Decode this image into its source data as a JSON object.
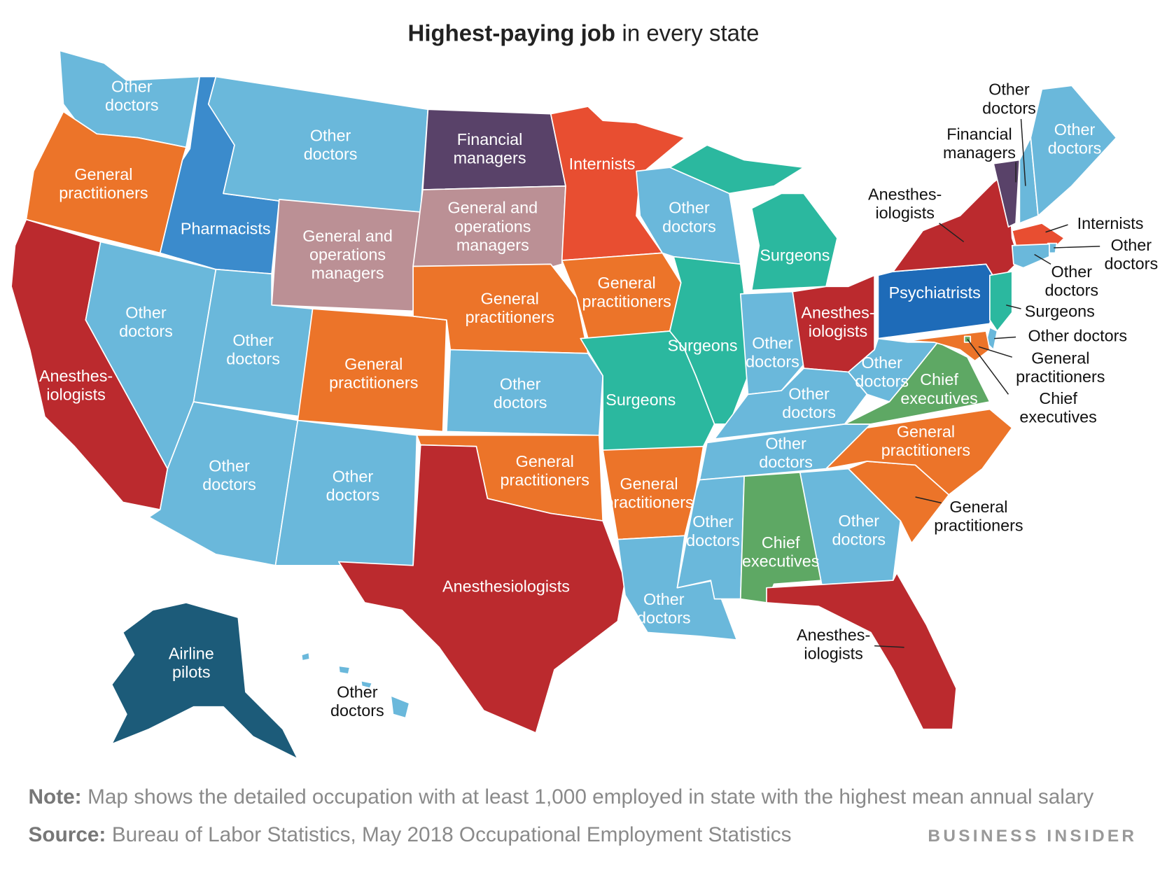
{
  "title": {
    "bold": "Highest-paying job",
    "rest": "in every state"
  },
  "regions": [
    {
      "lines": [
        "Other",
        "doctors"
      ],
      "color": "#6ab8db"
    },
    {
      "lines": [
        "General",
        "practitioners"
      ],
      "color": "#ec7429"
    },
    {
      "lines": [
        "Anesthes-",
        "iologists"
      ],
      "color": "#bb2a2e"
    },
    {
      "lines": [
        "Other",
        "doctors"
      ],
      "color": "#6ab8db"
    },
    {
      "lines": [
        "Pharmacists"
      ],
      "color": "#3b8bcc"
    },
    {
      "lines": [
        "Other",
        "doctors"
      ],
      "color": "#6ab8db"
    },
    {
      "lines": [
        "General and",
        "operations",
        "managers"
      ],
      "color": "#bb9095"
    },
    {
      "lines": [
        "Other",
        "doctors"
      ],
      "color": "#6ab8db"
    },
    {
      "lines": [
        "General",
        "practitioners"
      ],
      "color": "#ec7429"
    },
    {
      "lines": [
        "Other",
        "doctors"
      ],
      "color": "#6ab8db"
    },
    {
      "lines": [
        "Other",
        "doctors"
      ],
      "color": "#6ab8db"
    },
    {
      "lines": [
        "Financial",
        "managers"
      ],
      "color": "#594269"
    },
    {
      "lines": [
        "General and",
        "operations",
        "managers"
      ],
      "color": "#bb9095"
    },
    {
      "lines": [
        "General",
        "practitioners"
      ],
      "color": "#ec7429"
    },
    {
      "lines": [
        "Other",
        "doctors"
      ],
      "color": "#6ab8db"
    },
    {
      "lines": [
        "General",
        "practitioners"
      ],
      "color": "#ec7429"
    },
    {
      "lines": [
        "Anesthesiologists"
      ],
      "color": "#bb2a2e"
    },
    {
      "lines": [
        "Internists"
      ],
      "color": "#e84e31"
    },
    {
      "lines": [
        "General",
        "practitioners"
      ],
      "color": "#ec7429"
    },
    {
      "lines": [
        "Surgeons"
      ],
      "color": "#2bb89f"
    },
    {
      "lines": [
        "General",
        "practitioners"
      ],
      "color": "#ec7429"
    },
    {
      "lines": [
        "Other",
        "doctors"
      ],
      "color": "#6ab8db"
    },
    {
      "lines": [
        "Other",
        "doctors"
      ],
      "color": "#6ab8db"
    },
    {
      "lines": [
        "Surgeons"
      ],
      "color": "#2bb89f"
    },
    {
      "lines": [
        "Surgeons"
      ],
      "color": "#2bb89f"
    },
    {
      "lines": [
        "Other",
        "doctors"
      ],
      "color": "#6ab8db"
    },
    {
      "lines": [
        "Anesthes-",
        "iologists"
      ],
      "color": "#bb2a2e"
    },
    {
      "lines": [
        "Other",
        "doctors"
      ],
      "color": "#6ab8db"
    },
    {
      "lines": [
        "Other",
        "doctors"
      ],
      "color": "#6ab8db"
    },
    {
      "lines": [
        "Other",
        "doctors"
      ],
      "color": "#6ab8db"
    },
    {
      "lines": [
        "Chief",
        "executives"
      ],
      "color": "#5ea864"
    },
    {
      "lines": [
        "Other",
        "doctors"
      ],
      "color": "#6ab8db"
    },
    {
      "lines": [
        "Anesthes-",
        "iologists"
      ],
      "color": "#bb2a2e"
    },
    {
      "lines": [
        "General",
        "practitioners"
      ],
      "color": "#ec7429"
    },
    {
      "lines": [
        "General",
        "practitioners"
      ],
      "color": "#ec7429"
    },
    {
      "lines": [
        "Chief",
        "executives"
      ],
      "color": "#5ea864"
    },
    {
      "lines": [
        "Other",
        "doctors"
      ],
      "color": "#6ab8db"
    },
    {
      "lines": [
        "Psychiatrists"
      ],
      "color": "#1e6bb8"
    },
    {
      "lines": [
        "Anesthes-",
        "iologists"
      ],
      "color": "#bb2a2e"
    },
    {
      "lines": [
        "Financial",
        "managers"
      ],
      "color": "#594269"
    },
    {
      "lines": [
        "Other",
        "doctors"
      ],
      "color": "#6ab8db"
    },
    {
      "lines": [
        "Other",
        "doctors"
      ],
      "color": "#6ab8db"
    },
    {
      "lines": [
        "Internists"
      ],
      "color": "#e84e31"
    },
    {
      "lines": [
        "Other",
        "doctors"
      ],
      "color": "#6ab8db"
    },
    {
      "lines": [
        "Other",
        "doctors"
      ],
      "color": "#6ab8db"
    },
    {
      "lines": [
        "Surgeons"
      ],
      "color": "#2bb89f"
    },
    {
      "lines": [
        "Other doctors"
      ],
      "color": "#6ab8db"
    },
    {
      "lines": [
        "General",
        "practitioners"
      ],
      "color": "#ec7429"
    },
    {
      "lines": [
        "Chief",
        "executives"
      ],
      "color": "#5ea864"
    },
    {
      "lines": [
        "Airline",
        "pilots"
      ],
      "color": "#1c5b79"
    },
    {
      "lines": [
        "Other",
        "doctors"
      ],
      "color": "#6ab8db"
    }
  ],
  "note": {
    "label": "Note:",
    "text": "Map shows the detailed occupation with at least 1,000 employed in state with the highest mean annual salary"
  },
  "source": {
    "label": "Source:",
    "text": "Bureau of Labor Statistics, May 2018 Occupational Employment Statistics"
  },
  "brand": "BUSINESS INSIDER"
}
